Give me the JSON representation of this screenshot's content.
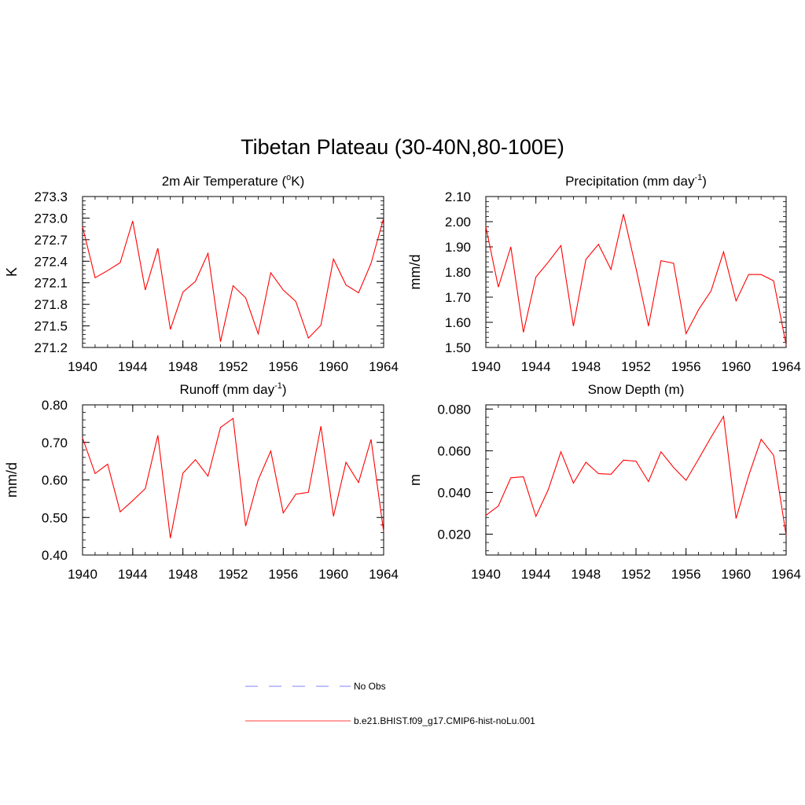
{
  "figure": {
    "title": "Tibetan Plateau (30-40N,80-100E)"
  },
  "chart_data": [
    {
      "type": "line",
      "title_main": "2m Air Temperature (",
      "title_sup": "o",
      "title_end": "K)",
      "ylabel": "K",
      "xlim": [
        1940,
        1964
      ],
      "ylim": [
        271.2,
        273.3
      ],
      "xticks": [
        "1940",
        "1944",
        "1948",
        "1952",
        "1956",
        "1960",
        "1964"
      ],
      "yticks": [
        "271.2",
        "271.5",
        "271.8",
        "272.1",
        "272.4",
        "272.7",
        "273.0",
        "273.3"
      ],
      "x": [
        1940,
        1941,
        1942,
        1943,
        1944,
        1945,
        1946,
        1947,
        1948,
        1949,
        1950,
        1951,
        1952,
        1953,
        1954,
        1955,
        1956,
        1957,
        1958,
        1959,
        1960,
        1961,
        1962,
        1963,
        1964
      ],
      "series": [
        {
          "values": [
            272.88,
            272.17,
            272.27,
            272.38,
            272.96,
            272.0,
            272.58,
            271.45,
            271.97,
            272.12,
            272.51,
            271.28,
            272.06,
            271.89,
            271.39,
            272.24,
            272.0,
            271.84,
            271.33,
            271.51,
            272.43,
            272.07,
            271.96,
            272.37,
            273.0
          ]
        }
      ]
    },
    {
      "type": "line",
      "title_main": "Precipitation (mm day",
      "title_sup": "-1",
      "title_end": ")",
      "ylabel": "mm/d",
      "xlim": [
        1940,
        1964
      ],
      "ylim": [
        1.5,
        2.1
      ],
      "xticks": [
        "1940",
        "1944",
        "1948",
        "1952",
        "1956",
        "1960",
        "1964"
      ],
      "yticks": [
        "1.50",
        "1.60",
        "1.70",
        "1.80",
        "1.90",
        "2.00",
        "2.10"
      ],
      "x": [
        1940,
        1941,
        1942,
        1943,
        1944,
        1945,
        1946,
        1947,
        1948,
        1949,
        1950,
        1951,
        1952,
        1953,
        1954,
        1955,
        1956,
        1957,
        1958,
        1959,
        1960,
        1961,
        1962,
        1963,
        1964
      ],
      "series": [
        {
          "values": [
            1.98,
            1.74,
            1.9,
            1.56,
            1.78,
            1.84,
            1.905,
            1.585,
            1.85,
            1.91,
            1.81,
            2.03,
            1.815,
            1.585,
            1.845,
            1.835,
            1.555,
            1.65,
            1.725,
            1.88,
            1.685,
            1.79,
            1.79,
            1.765,
            1.51
          ]
        }
      ]
    },
    {
      "type": "line",
      "title_main": "Runoff (mm day",
      "title_sup": "-1",
      "title_end": ")",
      "ylabel": "mm/d",
      "xlim": [
        1940,
        1964
      ],
      "ylim": [
        0.4,
        0.8
      ],
      "xticks": [
        "1940",
        "1944",
        "1948",
        "1952",
        "1956",
        "1960",
        "1964"
      ],
      "yticks": [
        "0.40",
        "0.50",
        "0.60",
        "0.70",
        "0.80"
      ],
      "x": [
        1940,
        1941,
        1942,
        1943,
        1944,
        1945,
        1946,
        1947,
        1948,
        1949,
        1950,
        1951,
        1952,
        1953,
        1954,
        1955,
        1956,
        1957,
        1958,
        1959,
        1960,
        1961,
        1962,
        1963,
        1964
      ],
      "series": [
        {
          "values": [
            0.712,
            0.617,
            0.642,
            0.515,
            0.545,
            0.577,
            0.719,
            0.445,
            0.618,
            0.654,
            0.61,
            0.74,
            0.764,
            0.477,
            0.6,
            0.677,
            0.512,
            0.562,
            0.567,
            0.743,
            0.503,
            0.647,
            0.593,
            0.708,
            0.462
          ]
        }
      ]
    },
    {
      "type": "line",
      "title_main": "Snow Depth (m)",
      "title_sup": "",
      "title_end": "",
      "ylabel": "m",
      "xlim": [
        1940,
        1964
      ],
      "ylim": [
        0.01,
        0.082
      ],
      "xticks": [
        "1940",
        "1944",
        "1948",
        "1952",
        "1956",
        "1960",
        "1964"
      ],
      "yticks": [
        "0.020",
        "0.040",
        "0.060",
        "0.080"
      ],
      "x": [
        1940,
        1941,
        1942,
        1943,
        1944,
        1945,
        1946,
        1947,
        1948,
        1949,
        1950,
        1951,
        1952,
        1953,
        1954,
        1955,
        1956,
        1957,
        1958,
        1959,
        1960,
        1961,
        1962,
        1963,
        1964
      ],
      "series": [
        {
          "values": [
            0.029,
            0.0335,
            0.047,
            0.0475,
            0.0285,
            0.0415,
            0.0595,
            0.0445,
            0.0545,
            0.049,
            0.0487,
            0.0555,
            0.055,
            0.0452,
            0.0595,
            0.052,
            0.0458,
            0.056,
            0.0665,
            0.0765,
            0.0275,
            0.048,
            0.0655,
            0.0578,
            0.0195
          ]
        }
      ]
    }
  ],
  "legend": {
    "items": [
      {
        "label": "No Obs",
        "color": "#9999ff",
        "style": "dashed"
      },
      {
        "label": "b.e21.BHIST.f09_g17.CMIP6-hist-noLu.001",
        "color": "#ff0000",
        "style": "solid"
      }
    ]
  }
}
